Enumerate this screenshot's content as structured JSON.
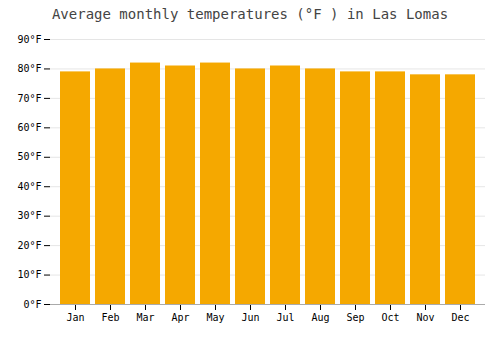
{
  "chart_data": {
    "type": "bar",
    "title": "Average monthly temperatures (°F ) in Las Lomas",
    "categories": [
      "Jan",
      "Feb",
      "Mar",
      "Apr",
      "May",
      "Jun",
      "Jul",
      "Aug",
      "Sep",
      "Oct",
      "Nov",
      "Dec"
    ],
    "values": [
      79,
      80,
      82,
      81,
      82,
      80,
      81,
      80,
      79,
      79,
      78,
      78
    ],
    "color": "#F5A800",
    "ylim": [
      0,
      90
    ],
    "yticks": [
      {
        "value": 0,
        "label": "0°F"
      },
      {
        "value": 10,
        "label": "10°F"
      },
      {
        "value": 20,
        "label": "20°F"
      },
      {
        "value": 30,
        "label": "30°F"
      },
      {
        "value": 40,
        "label": "40°F"
      },
      {
        "value": 50,
        "label": "50°F"
      },
      {
        "value": 60,
        "label": "60°F"
      },
      {
        "value": 70,
        "label": "70°F"
      },
      {
        "value": 80,
        "label": "80°F"
      },
      {
        "value": 90,
        "label": "90°F"
      }
    ],
    "grid": true
  }
}
